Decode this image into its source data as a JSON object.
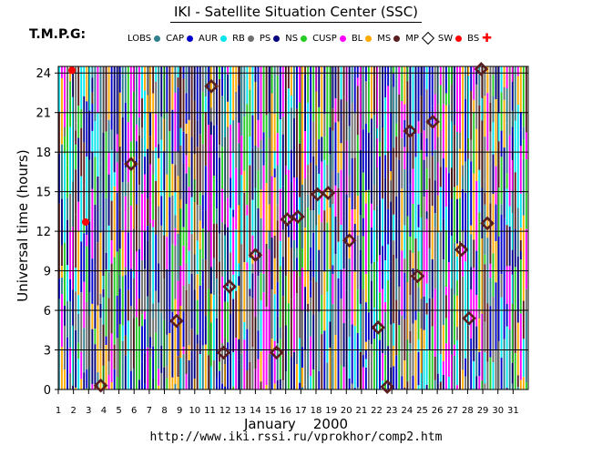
{
  "title": "IKI - Satellite Situation Center (SSC)",
  "tmpg_label": "T.M.P.G:",
  "legend": [
    {
      "label": "LOBS",
      "color": "#2f7f8f",
      "marker": "dot"
    },
    {
      "label": "CAP",
      "color": "#0000cc",
      "marker": "dot"
    },
    {
      "label": "AUR",
      "color": "#00e5ee",
      "marker": "dot"
    },
    {
      "label": "RB",
      "color": "#6f6f6f",
      "marker": "dot"
    },
    {
      "label": "PS",
      "color": "#000080",
      "marker": "dot"
    },
    {
      "label": "NS",
      "color": "#22cc22",
      "marker": "dot"
    },
    {
      "label": "CUSP",
      "color": "#ff00ff",
      "marker": "dot"
    },
    {
      "label": "BL",
      "color": "#ffaa00",
      "marker": "dot"
    },
    {
      "label": "MS",
      "color": "#5a1e1e",
      "marker": "dot"
    },
    {
      "label": "MP",
      "color": "#5a1e1e",
      "marker": "diamond"
    },
    {
      "label": "SW",
      "color": "#ff0000",
      "marker": "dot"
    },
    {
      "label": "BS",
      "color": "#ff0000",
      "marker": "cross"
    }
  ],
  "footer_url": "http://www.iki.rssi.ru/vprokhor/comp2.htm",
  "chart_data": {
    "type": "scatter",
    "xlabel": "January    2000",
    "ylabel": "Universal time (hours)",
    "x_ticks": [
      "1",
      "2",
      "3",
      "4",
      "5",
      "6",
      "7",
      "8",
      "9",
      "10",
      "11",
      "12",
      "13",
      "14",
      "15",
      "16",
      "17",
      "18",
      "19",
      "20",
      "21",
      "22",
      "23",
      "24",
      "25",
      "26",
      "27",
      "28",
      "29",
      "30",
      "31"
    ],
    "y_ticks": [
      "0",
      "3",
      "6",
      "9",
      "12",
      "15",
      "18",
      "21",
      "24"
    ],
    "xlim": [
      1,
      32
    ],
    "ylim": [
      0,
      24.5
    ],
    "grid": true,
    "region_colors": {
      "LOBS": "#2f7f8f",
      "CAP": "#0000cc",
      "AUR": "#00e5ee",
      "RB": "#6f6f6f",
      "PS": "#000080",
      "NS": "#22cc22",
      "CUSP": "#ff00ff",
      "BL": "#ffaa00",
      "MS": "#5a1e1e"
    },
    "magnetopause_crossings": [
      {
        "day": 3.8,
        "ut": 0.3
      },
      {
        "day": 5.8,
        "ut": 17.1
      },
      {
        "day": 8.8,
        "ut": 5.2
      },
      {
        "day": 11.1,
        "ut": 23.0
      },
      {
        "day": 11.9,
        "ut": 2.8
      },
      {
        "day": 12.3,
        "ut": 7.8
      },
      {
        "day": 14.0,
        "ut": 10.2
      },
      {
        "day": 15.4,
        "ut": 2.8
      },
      {
        "day": 16.1,
        "ut": 12.9
      },
      {
        "day": 16.8,
        "ut": 13.1
      },
      {
        "day": 18.1,
        "ut": 14.8
      },
      {
        "day": 18.8,
        "ut": 14.9
      },
      {
        "day": 20.2,
        "ut": 11.3
      },
      {
        "day": 22.1,
        "ut": 4.7
      },
      {
        "day": 22.7,
        "ut": 0.2
      },
      {
        "day": 24.2,
        "ut": 19.6
      },
      {
        "day": 24.7,
        "ut": 8.6
      },
      {
        "day": 25.7,
        "ut": 20.3
      },
      {
        "day": 27.6,
        "ut": 10.6
      },
      {
        "day": 28.1,
        "ut": 5.4
      },
      {
        "day": 28.9,
        "ut": 24.3
      },
      {
        "day": 29.3,
        "ut": 12.6
      }
    ],
    "solar_wind_points": [
      {
        "day": 1.9,
        "ut": 24.2
      },
      {
        "day": 2.8,
        "ut": 12.7
      }
    ]
  }
}
